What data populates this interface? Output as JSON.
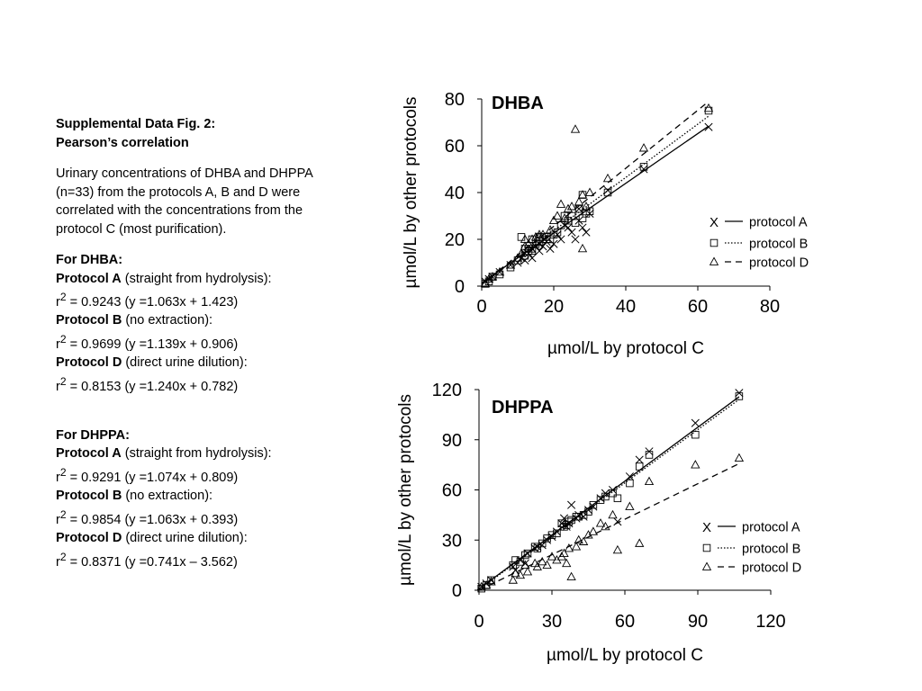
{
  "panel": {
    "title_line1": "Supplemental Data Fig. 2:",
    "title_line2": "Pearson’s correlation",
    "intro": [
      "Urinary concentrations of DHBA and DHPPA",
      "(n=33) from the protocols A, B and D were",
      "correlated with the concentrations from the",
      "protocol C (most purification)."
    ],
    "dhba": {
      "heading": "For DHBA:",
      "rows": [
        {
          "label": "Protocol A",
          "desc": " (straight from hydrolysis):",
          "r2": " = 0.9243 (y =1.063x + 1.423)"
        },
        {
          "label": "Protocol B",
          "desc": " (no extraction):",
          "r2": " = 0.9699 (y =1.139x + 0.906)"
        },
        {
          "label": "Protocol D",
          "desc": " (direct urine dilution):",
          "r2": " = 0.8153 (y =1.240x + 0.782)"
        }
      ]
    },
    "dhppa": {
      "heading": "For DHPPA:",
      "rows": [
        {
          "label": "Protocol A",
          "desc": "  (straight from hydrolysis):",
          "r2": " = 0.9291 (y =1.074x + 0.809)"
        },
        {
          "label": "Protocol B",
          "desc": "  (no extraction):",
          "r2": " = 0.9854 (y =1.063x + 0.393)"
        },
        {
          "label": "Protocol D",
          "desc": "  (direct urine dilution):",
          "r2": " = 0.8371 (y =0.741x – 3.562)"
        }
      ]
    },
    "r_symbol": "r",
    "superscript": "2"
  },
  "chart_data": [
    {
      "type": "scatter",
      "title": "DHBA",
      "xlabel": "µmol/L by protocol C",
      "ylabel": "µmol/L by other protocols",
      "xlim": [
        0,
        80
      ],
      "ylim": [
        0,
        80
      ],
      "xticks": [
        0,
        20,
        40,
        60,
        80
      ],
      "yticks": [
        0,
        20,
        40,
        60,
        80
      ],
      "grid": false,
      "legend_position": "right",
      "series": [
        {
          "name": "protocol A",
          "marker": "x",
          "line": "solid",
          "fit": [
            1.063,
            1.423
          ],
          "points": [
            [
              1,
              2
            ],
            [
              2,
              3
            ],
            [
              3,
              4
            ],
            [
              5,
              6
            ],
            [
              8,
              9
            ],
            [
              10,
              10
            ],
            [
              11,
              12
            ],
            [
              12,
              11
            ],
            [
              13,
              14
            ],
            [
              14,
              16
            ],
            [
              15,
              17
            ],
            [
              16,
              18
            ],
            [
              17,
              17
            ],
            [
              18,
              19
            ],
            [
              19,
              16
            ],
            [
              20,
              18
            ],
            [
              21,
              22
            ],
            [
              22,
              20
            ],
            [
              24,
              25
            ],
            [
              25,
              23
            ],
            [
              26,
              20
            ],
            [
              27,
              28
            ],
            [
              28,
              25
            ],
            [
              29,
              23
            ],
            [
              30,
              31
            ],
            [
              35,
              41
            ],
            [
              45,
              50
            ],
            [
              63,
              68
            ],
            [
              12,
              14
            ],
            [
              14,
              12
            ],
            [
              16,
              15
            ],
            [
              23,
              26
            ],
            [
              27,
              33
            ]
          ]
        },
        {
          "name": "protocol B",
          "marker": "square",
          "line": "dotted",
          "fit": [
            1.139,
            0.906
          ],
          "points": [
            [
              1,
              1
            ],
            [
              2,
              2
            ],
            [
              3,
              4
            ],
            [
              5,
              5
            ],
            [
              8,
              8
            ],
            [
              10,
              11
            ],
            [
              11,
              21
            ],
            [
              12,
              13
            ],
            [
              13,
              15
            ],
            [
              14,
              16
            ],
            [
              15,
              18
            ],
            [
              16,
              19
            ],
            [
              17,
              20
            ],
            [
              18,
              21
            ],
            [
              19,
              20
            ],
            [
              20,
              22
            ],
            [
              21,
              23
            ],
            [
              22,
              26
            ],
            [
              24,
              28
            ],
            [
              25,
              30
            ],
            [
              26,
              27
            ],
            [
              27,
              33
            ],
            [
              28,
              39
            ],
            [
              29,
              31
            ],
            [
              30,
              32
            ],
            [
              35,
              40
            ],
            [
              45,
              51
            ],
            [
              63,
              75
            ],
            [
              12,
              16
            ],
            [
              14,
              20
            ],
            [
              16,
              21
            ],
            [
              23,
              30
            ],
            [
              28,
              29
            ]
          ]
        },
        {
          "name": "protocol D",
          "marker": "triangle",
          "line": "dashed",
          "fit": [
            1.24,
            0.782
          ],
          "points": [
            [
              1,
              1
            ],
            [
              2,
              3
            ],
            [
              3,
              4
            ],
            [
              5,
              6
            ],
            [
              8,
              9
            ],
            [
              10,
              12
            ],
            [
              11,
              14
            ],
            [
              12,
              17
            ],
            [
              13,
              18
            ],
            [
              14,
              20
            ],
            [
              15,
              21
            ],
            [
              16,
              22
            ],
            [
              17,
              22
            ],
            [
              18,
              20
            ],
            [
              19,
              24
            ],
            [
              20,
              28
            ],
            [
              21,
              30
            ],
            [
              22,
              35
            ],
            [
              24,
              33
            ],
            [
              25,
              34
            ],
            [
              26,
              67
            ],
            [
              27,
              36
            ],
            [
              28,
              16
            ],
            [
              29,
              34
            ],
            [
              30,
              40
            ],
            [
              35,
              46
            ],
            [
              45,
              59
            ],
            [
              63,
              76
            ],
            [
              12,
              20
            ],
            [
              14,
              15
            ],
            [
              16,
              21
            ],
            [
              23,
              29
            ],
            [
              28,
              39
            ]
          ]
        }
      ]
    },
    {
      "type": "scatter",
      "title": "DHPPA",
      "xlabel": "µmol/L by protocol C",
      "ylabel": "µmol/L by other protocols",
      "xlim": [
        0,
        120
      ],
      "ylim": [
        0,
        120
      ],
      "xticks": [
        0,
        30,
        60,
        90,
        120
      ],
      "yticks": [
        0,
        30,
        60,
        90,
        120
      ],
      "grid": false,
      "legend_position": "right",
      "series": [
        {
          "name": "protocol A",
          "marker": "x",
          "line": "solid",
          "fit": [
            1.074,
            0.809
          ],
          "points": [
            [
              1,
              2
            ],
            [
              3,
              4
            ],
            [
              5,
              6
            ],
            [
              14,
              14
            ],
            [
              17,
              18
            ],
            [
              20,
              22
            ],
            [
              24,
              26
            ],
            [
              26,
              27
            ],
            [
              28,
              30
            ],
            [
              32,
              35
            ],
            [
              34,
              40
            ],
            [
              36,
              38
            ],
            [
              38,
              51
            ],
            [
              40,
              43
            ],
            [
              43,
              44
            ],
            [
              47,
              50
            ],
            [
              52,
              58
            ],
            [
              57,
              41
            ],
            [
              66,
              78
            ],
            [
              70,
              83
            ],
            [
              89,
              100
            ],
            [
              107,
              118
            ],
            [
              15,
              12
            ],
            [
              19,
              16
            ],
            [
              23,
              25
            ],
            [
              30,
              32
            ],
            [
              35,
              43
            ],
            [
              37,
              40
            ],
            [
              41,
              45
            ],
            [
              45,
              48
            ],
            [
              50,
              55
            ],
            [
              55,
              60
            ],
            [
              62,
              68
            ]
          ]
        },
        {
          "name": "protocol B",
          "marker": "square",
          "line": "dotted",
          "fit": [
            1.063,
            0.393
          ],
          "points": [
            [
              1,
              1
            ],
            [
              3,
              3
            ],
            [
              5,
              6
            ],
            [
              14,
              15
            ],
            [
              17,
              17
            ],
            [
              20,
              22
            ],
            [
              24,
              25
            ],
            [
              26,
              28
            ],
            [
              28,
              31
            ],
            [
              32,
              34
            ],
            [
              34,
              40
            ],
            [
              36,
              39
            ],
            [
              38,
              42
            ],
            [
              40,
              44
            ],
            [
              43,
              45
            ],
            [
              47,
              51
            ],
            [
              52,
              56
            ],
            [
              57,
              55
            ],
            [
              66,
              74
            ],
            [
              70,
              81
            ],
            [
              89,
              93
            ],
            [
              107,
              116
            ],
            [
              15,
              18
            ],
            [
              19,
              21
            ],
            [
              23,
              26
            ],
            [
              30,
              33
            ],
            [
              35,
              38
            ],
            [
              37,
              41
            ],
            [
              41,
              44
            ],
            [
              45,
              47
            ],
            [
              50,
              54
            ],
            [
              55,
              58
            ],
            [
              62,
              64
            ]
          ]
        },
        {
          "name": "protocol D",
          "marker": "triangle",
          "line": "dashed",
          "fit": [
            0.741,
            -3.562
          ],
          "points": [
            [
              1,
              2
            ],
            [
              3,
              3
            ],
            [
              5,
              5
            ],
            [
              14,
              6
            ],
            [
              17,
              9
            ],
            [
              20,
              11
            ],
            [
              24,
              14
            ],
            [
              26,
              17
            ],
            [
              28,
              15
            ],
            [
              32,
              18
            ],
            [
              34,
              20
            ],
            [
              36,
              16
            ],
            [
              38,
              8
            ],
            [
              40,
              26
            ],
            [
              43,
              29
            ],
            [
              47,
              35
            ],
            [
              52,
              38
            ],
            [
              57,
              24
            ],
            [
              66,
              28
            ],
            [
              70,
              65
            ],
            [
              89,
              75
            ],
            [
              107,
              79
            ],
            [
              15,
              10
            ],
            [
              19,
              15
            ],
            [
              23,
              16
            ],
            [
              30,
              20
            ],
            [
              35,
              22
            ],
            [
              37,
              25
            ],
            [
              41,
              30
            ],
            [
              45,
              33
            ],
            [
              50,
              40
            ],
            [
              55,
              45
            ],
            [
              62,
              50
            ]
          ]
        }
      ]
    }
  ]
}
